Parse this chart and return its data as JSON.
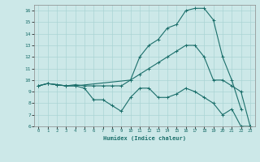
{
  "xlabel": "Humidex (Indice chaleur)",
  "xlim": [
    -0.5,
    23.5
  ],
  "ylim": [
    6,
    16.5
  ],
  "yticks": [
    6,
    7,
    8,
    9,
    10,
    11,
    12,
    13,
    14,
    15,
    16
  ],
  "xticks": [
    0,
    1,
    2,
    3,
    4,
    5,
    6,
    7,
    8,
    9,
    10,
    11,
    12,
    13,
    14,
    15,
    16,
    17,
    18,
    19,
    20,
    21,
    22,
    23
  ],
  "bg_color": "#cce8e8",
  "line_color": "#1a6e6a",
  "grid_color": "#aad4d4",
  "line1_x": [
    0,
    1,
    2,
    3,
    4,
    5,
    6,
    7,
    8,
    9,
    10,
    11,
    12,
    13,
    14,
    15,
    16,
    17,
    18,
    19,
    20,
    21,
    22,
    23
  ],
  "line1_y": [
    9.5,
    9.7,
    9.6,
    9.5,
    9.5,
    9.3,
    8.3,
    8.3,
    7.8,
    7.3,
    8.5,
    9.3,
    9.3,
    8.5,
    8.5,
    8.8,
    9.3,
    9.0,
    8.5,
    8.0,
    7.0,
    7.5,
    6.0,
    6.0
  ],
  "line2_x": [
    0,
    1,
    2,
    3,
    4,
    5,
    6,
    7,
    8,
    9,
    10,
    11,
    12,
    13,
    14,
    15,
    16,
    17,
    18,
    19,
    20,
    21,
    22,
    23
  ],
  "line2_y": [
    9.5,
    9.7,
    9.6,
    9.5,
    9.6,
    9.5,
    9.5,
    9.5,
    9.5,
    9.5,
    10.0,
    10.5,
    11.0,
    11.5,
    12.0,
    12.5,
    13.0,
    13.0,
    12.0,
    10.0,
    10.0,
    9.5,
    9.0,
    6.0
  ],
  "line3_x": [
    0,
    1,
    2,
    3,
    4,
    10,
    11,
    12,
    13,
    14,
    15,
    16,
    17,
    18,
    19,
    20,
    21,
    22
  ],
  "line3_y": [
    9.5,
    9.7,
    9.6,
    9.5,
    9.5,
    10.0,
    12.0,
    13.0,
    13.5,
    14.5,
    14.8,
    16.0,
    16.2,
    16.2,
    15.2,
    12.0,
    10.0,
    7.5
  ]
}
